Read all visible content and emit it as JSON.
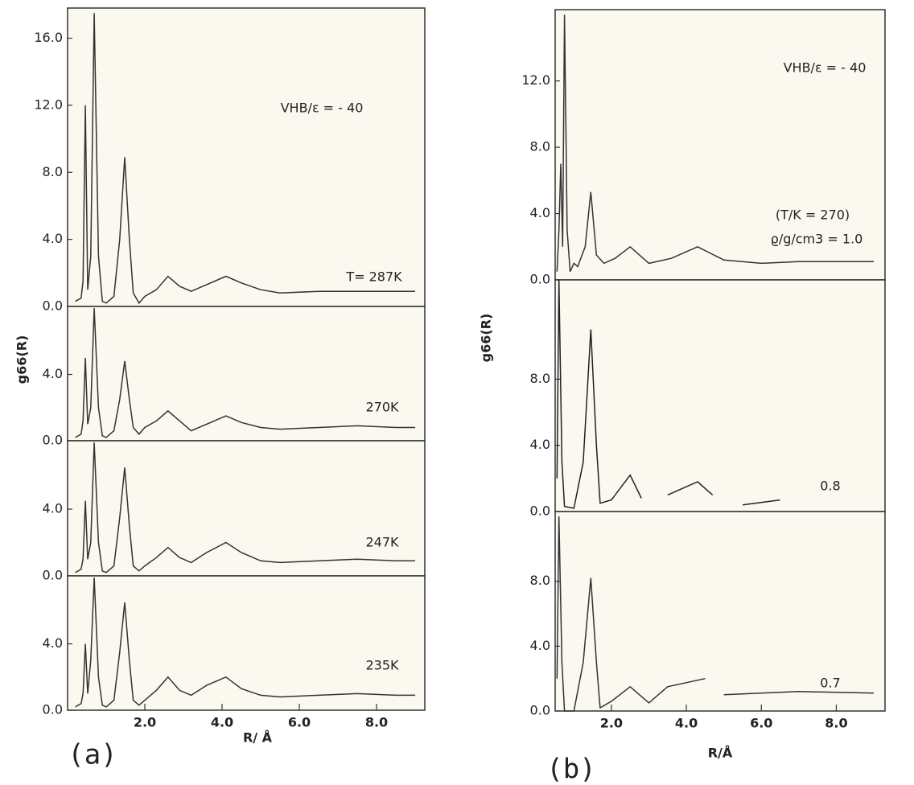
{
  "chart_data": [
    {
      "type": "line",
      "ylabel": "g66(R)",
      "annotations": [
        "VHB/ε = - 40",
        "T= 287K"
      ],
      "color": "#333333",
      "x": [
        0.2,
        0.35,
        0.4,
        0.46,
        0.52,
        0.6,
        0.69,
        0.8,
        0.9,
        1.0,
        1.2,
        1.35,
        1.48,
        1.6,
        1.7,
        1.85,
        2.0,
        2.3,
        2.6,
        2.9,
        3.2,
        3.6,
        4.1,
        4.5,
        5.0,
        5.5,
        6.5,
        7.5,
        8.5,
        9.0
      ],
      "values": [
        0.3,
        0.5,
        1.5,
        12,
        1,
        3,
        17.5,
        3,
        0.3,
        0.2,
        0.6,
        4,
        8.9,
        4,
        0.8,
        0.2,
        0.6,
        1.0,
        1.8,
        1.2,
        0.9,
        1.3,
        1.8,
        1.4,
        1.0,
        0.8,
        0.9,
        0.9,
        0.9,
        0.9
      ],
      "ylim": [
        0,
        17.8
      ],
      "yticks": [
        {
          "value": 0,
          "label": "0.0"
        },
        {
          "value": 4,
          "label": "4.0"
        },
        {
          "value": 8,
          "label": "8.0"
        },
        {
          "value": 12,
          "label": "12.0"
        },
        {
          "value": 16,
          "label": "16.0"
        }
      ],
      "xlim": [
        0,
        9.25
      ]
    },
    {
      "type": "line",
      "annotations": [
        "270K"
      ],
      "color": "#333333",
      "x": [
        0.2,
        0.35,
        0.4,
        0.46,
        0.52,
        0.6,
        0.69,
        0.8,
        0.9,
        1.0,
        1.2,
        1.35,
        1.48,
        1.6,
        1.7,
        1.85,
        2.0,
        2.3,
        2.6,
        2.9,
        3.2,
        3.6,
        4.1,
        4.5,
        5.0,
        5.5,
        6.5,
        7.5,
        8.5,
        9.0
      ],
      "values": [
        0.2,
        0.4,
        1.2,
        5,
        1,
        2,
        8,
        2,
        0.3,
        0.2,
        0.6,
        2.5,
        4.8,
        2.5,
        0.8,
        0.4,
        0.8,
        1.2,
        1.8,
        1.2,
        0.6,
        1.0,
        1.5,
        1.1,
        0.8,
        0.7,
        0.8,
        0.9,
        0.8,
        0.8
      ],
      "ylim": [
        0,
        8.1
      ],
      "yticks": [
        {
          "value": 0,
          "label": "0.0"
        },
        {
          "value": 4,
          "label": "4.0"
        }
      ],
      "xlim": [
        0,
        9.25
      ]
    },
    {
      "type": "line",
      "annotations": [
        "247K"
      ],
      "color": "#333333",
      "x": [
        0.2,
        0.35,
        0.4,
        0.46,
        0.52,
        0.6,
        0.69,
        0.8,
        0.9,
        1.0,
        1.2,
        1.35,
        1.48,
        1.6,
        1.7,
        1.85,
        2.0,
        2.3,
        2.6,
        2.9,
        3.2,
        3.6,
        4.1,
        4.5,
        5.0,
        5.5,
        6.5,
        7.5,
        8.5,
        9.0
      ],
      "values": [
        0.2,
        0.4,
        1.0,
        4.5,
        1,
        2,
        8,
        2,
        0.3,
        0.2,
        0.6,
        3.5,
        6.5,
        3,
        0.6,
        0.3,
        0.6,
        1.1,
        1.7,
        1.1,
        0.8,
        1.4,
        2.0,
        1.4,
        0.9,
        0.8,
        0.9,
        1.0,
        0.9,
        0.9
      ],
      "ylim": [
        0,
        8.1
      ],
      "yticks": [
        {
          "value": 0,
          "label": "0.0"
        },
        {
          "value": 4,
          "label": "4.0"
        }
      ],
      "xlim": [
        0,
        9.25
      ]
    },
    {
      "type": "line",
      "annotations": [
        "235K"
      ],
      "color": "#333333",
      "xlabel": "R/ Å",
      "panel_label": "(a)",
      "x": [
        0.2,
        0.35,
        0.4,
        0.46,
        0.52,
        0.6,
        0.69,
        0.8,
        0.9,
        1.0,
        1.2,
        1.35,
        1.48,
        1.6,
        1.7,
        1.85,
        2.0,
        2.3,
        2.6,
        2.9,
        3.2,
        3.6,
        4.1,
        4.5,
        5.0,
        5.5,
        6.5,
        7.5,
        8.5,
        9.0
      ],
      "values": [
        0.2,
        0.4,
        1.0,
        4.0,
        1,
        3,
        8,
        2,
        0.3,
        0.2,
        0.6,
        3.5,
        6.5,
        3,
        0.6,
        0.3,
        0.6,
        1.2,
        2.0,
        1.2,
        0.9,
        1.5,
        2.0,
        1.3,
        0.9,
        0.8,
        0.9,
        1.0,
        0.9,
        0.9
      ],
      "ylim": [
        0,
        8.1
      ],
      "yticks": [
        {
          "value": 0,
          "label": "0.0"
        },
        {
          "value": 4,
          "label": "4.0"
        }
      ],
      "xlim": [
        0,
        9.25
      ],
      "xticks": [
        {
          "value": 2,
          "label": "2.0"
        },
        {
          "value": 4,
          "label": "4.0"
        },
        {
          "value": 6,
          "label": "6.0"
        },
        {
          "value": 8,
          "label": "8.0"
        }
      ]
    },
    {
      "type": "line",
      "ylabel": "g66(R)",
      "annotations": [
        "VHB/ε = - 40",
        "(T/K = 270)",
        "ϱ/g/cm3 = 1.0"
      ],
      "color": "#333333",
      "x": [
        0.55,
        0.6,
        0.65,
        0.7,
        0.75,
        0.82,
        0.9,
        1.0,
        1.1,
        1.3,
        1.45,
        1.6,
        1.8,
        2.1,
        2.5,
        3.0,
        3.6,
        4.3,
        5.0,
        6.0,
        7.0,
        8.0,
        9.0
      ],
      "values": [
        0.5,
        3,
        7,
        2,
        16,
        3,
        0.5,
        1.0,
        0.8,
        2.0,
        5.3,
        1.5,
        1.0,
        1.3,
        2.0,
        1.0,
        1.3,
        2.0,
        1.2,
        1.0,
        1.1,
        1.1,
        1.1
      ],
      "ylim": [
        0,
        16.3
      ],
      "yticks": [
        {
          "value": 0,
          "label": "0.0"
        },
        {
          "value": 4,
          "label": "4.0"
        },
        {
          "value": 8,
          "label": "8.0"
        },
        {
          "value": 12,
          "label": "12.0"
        }
      ],
      "xlim": [
        0.5,
        9.3
      ]
    },
    {
      "type": "line",
      "annotations": [
        "0.8"
      ],
      "color": "#222222",
      "x": [
        0.55,
        0.6,
        0.68,
        0.75,
        1.0,
        1.25,
        1.45,
        1.6,
        1.7,
        2.0,
        2.5,
        2.8,
        3.0,
        3.5,
        4.3,
        4.7,
        5.0,
        5.5,
        6.5,
        7.0
      ],
      "values": [
        2,
        14,
        3,
        0.3,
        0.2,
        3,
        11,
        4,
        0.5,
        0.7,
        2.2,
        0.8,
        null,
        1.0,
        1.8,
        1.0,
        null,
        0.4,
        0.7,
        null
      ],
      "ylim": [
        0,
        14
      ],
      "yticks": [
        {
          "value": 0,
          "label": "0.0"
        },
        {
          "value": 4,
          "label": "4.0"
        },
        {
          "value": 8,
          "label": "8.0"
        }
      ],
      "xlim": [
        0.5,
        9.3
      ]
    },
    {
      "type": "line",
      "annotations": [
        "0.7"
      ],
      "color": "#333333",
      "xlabel": "R/Å",
      "panel_label": "(b)",
      "x": [
        0.55,
        0.6,
        0.68,
        0.75,
        1.0,
        1.25,
        1.45,
        1.6,
        1.7,
        2.0,
        2.5,
        3.0,
        3.5,
        4.5,
        4.6,
        5.0,
        7.0,
        9.0
      ],
      "values": [
        2,
        12,
        3,
        0,
        0,
        3,
        8.2,
        3,
        0.2,
        0.6,
        1.5,
        0.5,
        1.5,
        2.0,
        null,
        1.0,
        1.2,
        1.1
      ],
      "ylim": [
        0,
        12.3
      ],
      "yticks": [
        {
          "value": 0,
          "label": "0.0"
        },
        {
          "value": 4,
          "label": "4.0"
        },
        {
          "value": 8,
          "label": "8.0"
        }
      ],
      "xlim": [
        0.5,
        9.3
      ],
      "xticks": [
        {
          "value": 2,
          "label": "2.0"
        },
        {
          "value": 4,
          "label": "4.0"
        },
        {
          "value": 6,
          "label": "6.0"
        },
        {
          "value": 8,
          "label": "8.0"
        }
      ]
    }
  ]
}
